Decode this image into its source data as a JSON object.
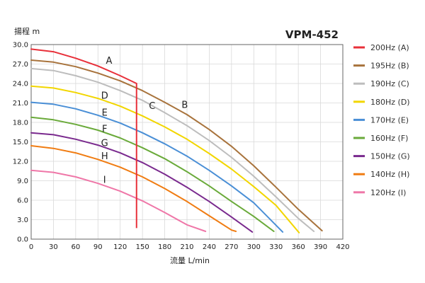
{
  "chart_data": {
    "type": "line",
    "title": "VPM-452",
    "ylabel": "揚程 m",
    "xlabel": "流量 L/min",
    "xlim": [
      0,
      420
    ],
    "ylim": [
      0,
      30
    ],
    "xticks": [
      "0",
      "30",
      "60",
      "90",
      "120",
      "150",
      "180",
      "210",
      "240",
      "270",
      "300",
      "330",
      "360",
      "390",
      "420"
    ],
    "yticks": [
      "0.0",
      "3.0",
      "6.0",
      "9.0",
      "12.0",
      "15.0",
      "18.0",
      "21.0",
      "24.0",
      "27.0",
      "30.0"
    ],
    "grid": true,
    "legend_position": "right",
    "series": [
      {
        "name": "200Hz (A)",
        "color": "#e8303a",
        "label": "A",
        "label_at": [
          105,
          27.6
        ],
        "x": [
          0,
          30,
          60,
          90,
          120,
          142
        ],
        "y": [
          29.3,
          28.9,
          27.9,
          26.7,
          25.2,
          24.0
        ]
      },
      {
        "name": "195Hz (B)",
        "color": "#a8733c",
        "label": "B",
        "label_at": [
          207,
          20.8
        ],
        "x": [
          0,
          30,
          60,
          90,
          120,
          150,
          180,
          210,
          240,
          270,
          300,
          330,
          360,
          392
        ],
        "y": [
          27.6,
          27.3,
          26.6,
          25.6,
          24.4,
          22.9,
          21.1,
          19.2,
          16.9,
          14.3,
          11.3,
          8.0,
          4.6,
          1.3
        ]
      },
      {
        "name": "190Hz (C)",
        "color": "#bdbdbd",
        "label": "C",
        "label_at": [
          163,
          20.6
        ],
        "x": [
          0,
          30,
          60,
          90,
          120,
          150,
          180,
          210,
          240,
          270,
          300,
          330,
          360,
          381
        ],
        "y": [
          26.3,
          26.0,
          25.2,
          24.2,
          22.9,
          21.4,
          19.5,
          17.5,
          15.2,
          12.6,
          9.7,
          6.5,
          3.2,
          1.2
        ]
      },
      {
        "name": "180Hz (D)",
        "color": "#f2d600",
        "label": "D",
        "label_at": [
          99,
          22.2
        ],
        "x": [
          0,
          30,
          60,
          90,
          120,
          150,
          180,
          210,
          240,
          270,
          300,
          330,
          361
        ],
        "y": [
          23.6,
          23.3,
          22.6,
          21.7,
          20.5,
          19.0,
          17.3,
          15.4,
          13.2,
          10.8,
          8.1,
          5.2,
          1.0
        ]
      },
      {
        "name": "170Hz (E)",
        "color": "#4a8fd6",
        "label": "E",
        "label_at": [
          99,
          19.6
        ],
        "x": [
          0,
          30,
          60,
          90,
          120,
          150,
          180,
          210,
          240,
          270,
          300,
          339
        ],
        "y": [
          21.1,
          20.8,
          20.1,
          19.1,
          17.9,
          16.4,
          14.7,
          12.8,
          10.6,
          8.2,
          5.6,
          1.1
        ]
      },
      {
        "name": "160Hz (F)",
        "color": "#6aaa3a",
        "label": "F",
        "label_at": [
          99,
          17.1
        ],
        "x": [
          0,
          30,
          60,
          90,
          120,
          150,
          180,
          210,
          240,
          270,
          300,
          327
        ],
        "y": [
          18.8,
          18.4,
          17.7,
          16.8,
          15.6,
          14.1,
          12.4,
          10.4,
          8.2,
          5.8,
          3.5,
          1.2
        ]
      },
      {
        "name": "150Hz (G)",
        "color": "#7a2a8e",
        "label": "G",
        "label_at": [
          99,
          14.9
        ],
        "x": [
          0,
          30,
          60,
          90,
          120,
          150,
          180,
          210,
          240,
          270,
          298
        ],
        "y": [
          16.4,
          16.1,
          15.4,
          14.5,
          13.3,
          11.8,
          10.0,
          8.0,
          5.8,
          3.4,
          1.1
        ]
      },
      {
        "name": "140Hz (H)",
        "color": "#f07c12",
        "label": "H",
        "label_at": [
          99,
          12.9
        ],
        "x": [
          0,
          30,
          60,
          90,
          120,
          150,
          180,
          210,
          240,
          270,
          276
        ],
        "y": [
          14.4,
          14.0,
          13.3,
          12.3,
          11.1,
          9.6,
          7.8,
          5.8,
          3.6,
          1.4,
          1.2
        ]
      },
      {
        "name": "120Hz (I)",
        "color": "#ef77a8",
        "label": "I",
        "label_at": [
          99,
          9.2
        ],
        "x": [
          0,
          30,
          60,
          90,
          120,
          150,
          180,
          210,
          235
        ],
        "y": [
          10.6,
          10.3,
          9.6,
          8.6,
          7.4,
          5.9,
          4.1,
          2.2,
          1.2
        ]
      }
    ],
    "vertical_line": {
      "color": "#e8303a",
      "x": 142,
      "y_from": 1.7,
      "y_to": 24.0
    }
  }
}
